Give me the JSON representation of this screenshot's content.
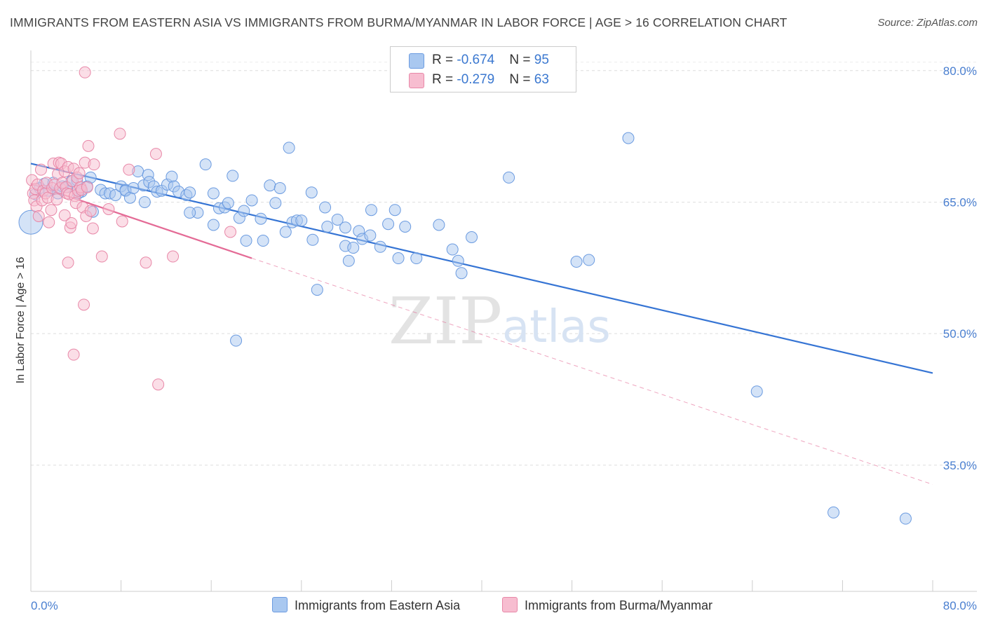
{
  "title": "IMMIGRANTS FROM EASTERN ASIA VS IMMIGRANTS FROM BURMA/MYANMAR IN LABOR FORCE | AGE > 16 CORRELATION CHART",
  "source": "Source: ZipAtlas.com",
  "watermark": {
    "zip": "ZIP",
    "atlas": "atlas"
  },
  "legend": {
    "rows": [
      {
        "r_label": "R = ",
        "r_value": "-0.674",
        "n_label": "N = ",
        "n_value": "95"
      },
      {
        "r_label": "R = ",
        "r_value": "-0.279",
        "n_label": "N = ",
        "n_value": "63"
      }
    ]
  },
  "chart_data": {
    "type": "scatter",
    "title": "IMMIGRANTS FROM EASTERN ASIA VS IMMIGRANTS FROM BURMA/MYANMAR IN LABOR FORCE | AGE > 16 CORRELATION CHART",
    "xlabel": "",
    "ylabel": "In Labor Force | Age > 16",
    "xlim": [
      0,
      80
    ],
    "ylim": [
      20.6,
      82.3
    ],
    "x_tick_labels": [
      "0.0%",
      "80.0%"
    ],
    "y_ticks": [
      35,
      50,
      65,
      80
    ],
    "y_tick_labels": [
      "35.0%",
      "50.0%",
      "65.0%",
      "80.0%"
    ],
    "grid": true,
    "legend_position": "top-center",
    "series": [
      {
        "name": "Immigrants from Eastern Asia",
        "color": "#a9c8f0",
        "stroke": "#6b9be0",
        "line_color": "#3574d4",
        "r": -0.674,
        "n": 95,
        "trend": {
          "x": [
            0,
            80
          ],
          "y": [
            69.4,
            45.5
          ],
          "style": "solid"
        },
        "points": [
          [
            0.0,
            62.7
          ],
          [
            0.4,
            65.9
          ],
          [
            0.8,
            66.6
          ],
          [
            1.2,
            67.1
          ],
          [
            1.6,
            66.3
          ],
          [
            2.0,
            67.2
          ],
          [
            2.4,
            66.0
          ],
          [
            2.8,
            66.8
          ],
          [
            3.2,
            66.7
          ],
          [
            3.6,
            67.4
          ],
          [
            4.1,
            67.5
          ],
          [
            4.5,
            66.2
          ],
          [
            5.0,
            66.8
          ],
          [
            5.3,
            67.8
          ],
          [
            5.5,
            63.9
          ],
          [
            6.2,
            66.4
          ],
          [
            6.6,
            66.0
          ],
          [
            7.0,
            66.0
          ],
          [
            7.5,
            65.8
          ],
          [
            8.0,
            66.8
          ],
          [
            8.4,
            66.4
          ],
          [
            8.4,
            66.3
          ],
          [
            8.8,
            65.5
          ],
          [
            9.1,
            66.6
          ],
          [
            9.5,
            68.5
          ],
          [
            10.0,
            66.9
          ],
          [
            10.1,
            65.0
          ],
          [
            10.4,
            68.1
          ],
          [
            10.5,
            67.3
          ],
          [
            10.9,
            66.8
          ],
          [
            11.2,
            66.2
          ],
          [
            11.6,
            66.3
          ],
          [
            12.1,
            67.0
          ],
          [
            12.5,
            67.9
          ],
          [
            12.7,
            66.8
          ],
          [
            13.1,
            66.2
          ],
          [
            13.8,
            65.8
          ],
          [
            14.1,
            66.1
          ],
          [
            14.8,
            63.8
          ],
          [
            15.5,
            69.3
          ],
          [
            16.2,
            62.4
          ],
          [
            16.2,
            66.0
          ],
          [
            16.7,
            64.3
          ],
          [
            17.2,
            64.4
          ],
          [
            17.5,
            64.9
          ],
          [
            17.9,
            68.0
          ],
          [
            18.5,
            63.2
          ],
          [
            18.9,
            64.0
          ],
          [
            19.1,
            60.6
          ],
          [
            19.6,
            65.2
          ],
          [
            20.4,
            63.1
          ],
          [
            20.6,
            60.6
          ],
          [
            21.2,
            66.9
          ],
          [
            21.7,
            64.9
          ],
          [
            22.1,
            66.6
          ],
          [
            22.6,
            61.6
          ],
          [
            22.9,
            71.2
          ],
          [
            23.2,
            62.7
          ],
          [
            23.6,
            62.9
          ],
          [
            24.0,
            62.9
          ],
          [
            24.9,
            66.1
          ],
          [
            25.0,
            60.7
          ],
          [
            25.4,
            55.0
          ],
          [
            26.1,
            64.4
          ],
          [
            26.3,
            62.2
          ],
          [
            27.2,
            63.0
          ],
          [
            27.9,
            62.1
          ],
          [
            27.9,
            60.0
          ],
          [
            28.2,
            58.3
          ],
          [
            28.6,
            59.8
          ],
          [
            29.1,
            61.7
          ],
          [
            29.4,
            60.8
          ],
          [
            30.1,
            61.2
          ],
          [
            30.2,
            64.1
          ],
          [
            31.0,
            59.9
          ],
          [
            31.7,
            62.5
          ],
          [
            32.3,
            64.1
          ],
          [
            32.6,
            58.6
          ],
          [
            33.2,
            62.2
          ],
          [
            34.2,
            58.6
          ],
          [
            36.2,
            62.4
          ],
          [
            37.4,
            59.6
          ],
          [
            37.9,
            58.3
          ],
          [
            38.2,
            56.9
          ],
          [
            39.1,
            61.0
          ],
          [
            42.4,
            67.8
          ],
          [
            48.4,
            58.2
          ],
          [
            49.5,
            58.4
          ],
          [
            53.0,
            72.3
          ],
          [
            18.2,
            49.2
          ],
          [
            64.4,
            43.4
          ],
          [
            71.2,
            29.6
          ],
          [
            77.6,
            28.9
          ],
          [
            4.2,
            66.0
          ],
          [
            14.1,
            63.8
          ]
        ]
      },
      {
        "name": "Immigrants from Burma/Myanmar",
        "color": "#f7bdd0",
        "stroke": "#e888a8",
        "line_color": "#e46b96",
        "r": -0.279,
        "n": 63,
        "trend": {
          "x": [
            0,
            19.6
          ],
          "y": [
            67.1,
            58.6
          ],
          "style": "solid"
        },
        "trend_extension": {
          "x": [
            19.6,
            80
          ],
          "y": [
            58.6,
            32.8
          ],
          "style": "dashed"
        },
        "points": [
          [
            0.1,
            67.5
          ],
          [
            0.2,
            66.0
          ],
          [
            0.3,
            65.2
          ],
          [
            0.4,
            66.5
          ],
          [
            0.5,
            64.5
          ],
          [
            0.6,
            67.0
          ],
          [
            0.7,
            63.4
          ],
          [
            0.9,
            68.7
          ],
          [
            1.0,
            65.2
          ],
          [
            1.1,
            66.3
          ],
          [
            1.3,
            66.0
          ],
          [
            1.4,
            67.2
          ],
          [
            1.5,
            65.5
          ],
          [
            1.6,
            62.7
          ],
          [
            1.8,
            64.1
          ],
          [
            1.9,
            66.6
          ],
          [
            2.0,
            69.4
          ],
          [
            2.1,
            67.0
          ],
          [
            2.3,
            65.3
          ],
          [
            2.4,
            68.2
          ],
          [
            2.5,
            69.5
          ],
          [
            2.6,
            66.6
          ],
          [
            2.7,
            69.4
          ],
          [
            2.8,
            67.2
          ],
          [
            3.0,
            63.5
          ],
          [
            3.0,
            68.5
          ],
          [
            3.1,
            66.7
          ],
          [
            3.2,
            66.0
          ],
          [
            3.3,
            69.0
          ],
          [
            3.4,
            65.9
          ],
          [
            3.5,
            62.1
          ],
          [
            3.6,
            62.6
          ],
          [
            3.7,
            67.4
          ],
          [
            3.8,
            68.8
          ],
          [
            3.9,
            65.7
          ],
          [
            4.0,
            64.9
          ],
          [
            4.1,
            67.8
          ],
          [
            4.2,
            66.3
          ],
          [
            4.3,
            68.3
          ],
          [
            4.4,
            66.7
          ],
          [
            4.5,
            66.4
          ],
          [
            4.6,
            64.4
          ],
          [
            4.7,
            53.3
          ],
          [
            4.8,
            69.5
          ],
          [
            4.9,
            63.4
          ],
          [
            5.0,
            66.7
          ],
          [
            5.1,
            71.4
          ],
          [
            5.3,
            64.0
          ],
          [
            5.5,
            62.0
          ],
          [
            5.6,
            69.3
          ],
          [
            6.3,
            58.8
          ],
          [
            6.9,
            64.2
          ],
          [
            7.9,
            72.8
          ],
          [
            8.1,
            62.8
          ],
          [
            8.7,
            68.7
          ],
          [
            10.2,
            58.1
          ],
          [
            11.1,
            70.5
          ],
          [
            11.3,
            44.2
          ],
          [
            12.6,
            58.8
          ],
          [
            17.7,
            61.6
          ],
          [
            3.3,
            58.1
          ],
          [
            3.8,
            47.6
          ],
          [
            4.8,
            79.8
          ]
        ]
      }
    ]
  }
}
